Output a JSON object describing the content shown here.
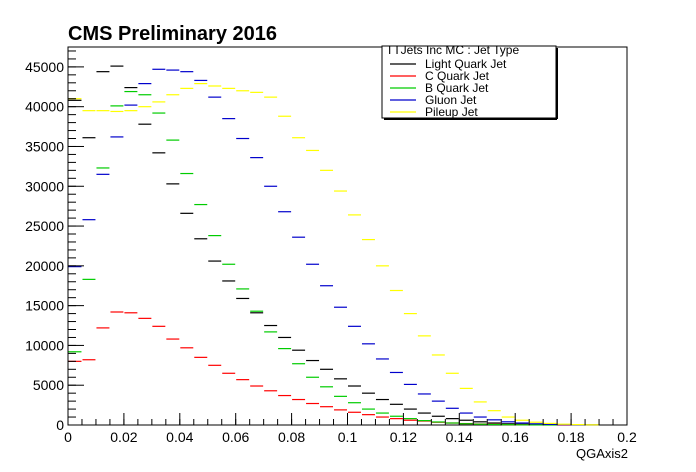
{
  "chart_data": {
    "type": "scatter",
    "title": "CMS Preliminary 2016",
    "xlabel": "QGAxis2",
    "ylabel": "",
    "xlim": [
      0,
      0.2
    ],
    "ylim": [
      0,
      47500
    ],
    "x_ticks": [
      "0",
      "0.02",
      "0.04",
      "0.06",
      "0.08",
      "0.1",
      "0.12",
      "0.14",
      "0.16",
      "0.18",
      "0.2"
    ],
    "y_ticks": [
      "0",
      "5000",
      "10000",
      "15000",
      "20000",
      "25000",
      "30000",
      "35000",
      "40000",
      "45000"
    ],
    "bin_width": 0.005,
    "bin_centers": [
      0.0025,
      0.0075,
      0.0125,
      0.0175,
      0.0225,
      0.0275,
      0.0325,
      0.0375,
      0.0425,
      0.0475,
      0.0525,
      0.0575,
      0.0625,
      0.0675,
      0.0725,
      0.0775,
      0.0825,
      0.0875,
      0.0925,
      0.0975,
      0.1025,
      0.1075,
      0.1125,
      0.1175,
      0.1225,
      0.1275,
      0.1325,
      0.1375,
      0.1425,
      0.1475,
      0.1525,
      0.1575,
      0.1625,
      0.1675,
      0.1725,
      0.1775,
      0.1825,
      0.1875,
      0.1925,
      0.1975
    ],
    "legend": {
      "title": "TTJets Inc MC : Jet Type",
      "placement": "top-right"
    },
    "series": [
      {
        "name": "Light Quark Jet",
        "color": "#000000",
        "values": [
          40800,
          36100,
          44400,
          45100,
          42400,
          37800,
          34200,
          30300,
          26600,
          23400,
          20600,
          18100,
          15900,
          14100,
          12500,
          11000,
          9400,
          8100,
          7000,
          5800,
          4900,
          4000,
          3200,
          2600,
          2000,
          1500,
          1100,
          800,
          600,
          400,
          250,
          150,
          100,
          50,
          30,
          20,
          10,
          5,
          0,
          0
        ]
      },
      {
        "name": "C Quark Jet",
        "color": "#ff0000",
        "values": [
          8000,
          8200,
          12200,
          14200,
          14100,
          13400,
          12400,
          10800,
          9700,
          8500,
          7500,
          6500,
          5700,
          4900,
          4300,
          3700,
          3200,
          2700,
          2300,
          1900,
          1600,
          1300,
          1000,
          800,
          600,
          500,
          350,
          250,
          180,
          120,
          80,
          50,
          30,
          20,
          10,
          5,
          0,
          0,
          0,
          0
        ]
      },
      {
        "name": "B Quark Jet",
        "color": "#00cc00",
        "values": [
          9200,
          18300,
          32300,
          40100,
          41900,
          41500,
          39200,
          35800,
          31600,
          27700,
          23800,
          20200,
          17100,
          14300,
          11700,
          9600,
          7700,
          6000,
          4800,
          3600,
          2800,
          2000,
          1500,
          1100,
          800,
          550,
          380,
          250,
          160,
          100,
          60,
          40,
          20,
          10,
          5,
          0,
          0,
          0,
          0,
          0
        ]
      },
      {
        "name": "Gluon Jet",
        "color": "#0000cc",
        "values": [
          19900,
          25800,
          31500,
          36200,
          40200,
          42900,
          44700,
          44600,
          44400,
          43300,
          41200,
          38500,
          36000,
          33600,
          30000,
          26800,
          23600,
          20200,
          17500,
          14800,
          12400,
          10200,
          8300,
          6600,
          5100,
          3900,
          3000,
          2100,
          1500,
          1000,
          650,
          400,
          250,
          150,
          80,
          40,
          20,
          10,
          0,
          0
        ]
      },
      {
        "name": "Pileup Jet",
        "color": "#ffff00",
        "values": [
          41000,
          39500,
          39500,
          39400,
          39500,
          40000,
          40600,
          41500,
          42300,
          42900,
          42600,
          42300,
          42000,
          41800,
          41200,
          38800,
          36100,
          34500,
          32000,
          29400,
          26400,
          23300,
          20000,
          16900,
          14000,
          11200,
          8800,
          6500,
          4600,
          2900,
          1800,
          1000,
          600,
          350,
          200,
          100,
          50,
          20,
          0,
          0
        ]
      }
    ]
  }
}
